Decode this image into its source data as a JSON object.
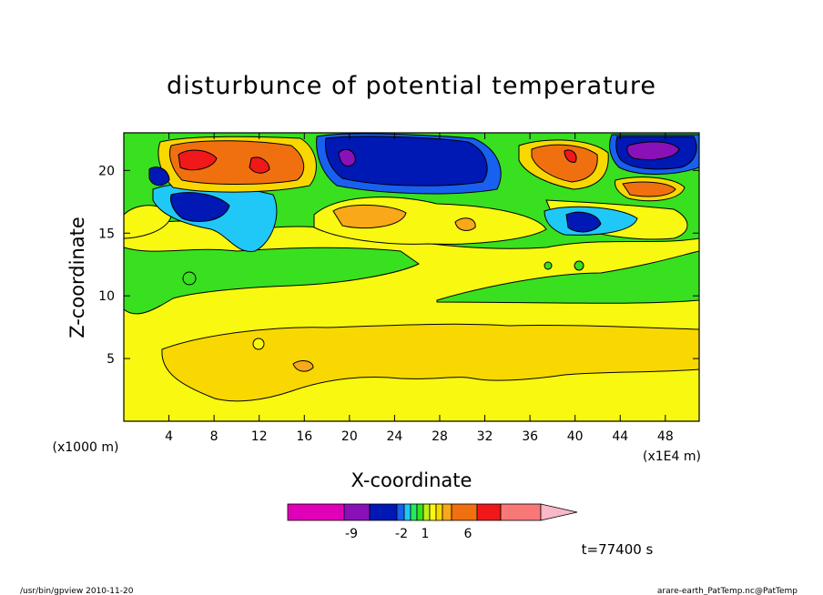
{
  "chart_data": {
    "type": "heatmap",
    "title": "disturbunce of potential temperature",
    "xlabel": "X-coordinate",
    "ylabel": "Z-coordinate",
    "x_unit_label": "(x1E4 m)",
    "y_unit_label": "(x1000 m)",
    "xlim": [
      0,
      51
    ],
    "ylim": [
      0,
      23
    ],
    "x_ticks": [
      4,
      8,
      12,
      16,
      20,
      24,
      28,
      32,
      36,
      40,
      44,
      48
    ],
    "y_ticks": [
      5,
      10,
      15,
      20
    ],
    "colorbar": {
      "colors": [
        "#e000b8",
        "#8a10b8",
        "#0018b4",
        "#1860f0",
        "#20c8f8",
        "#28e860",
        "#38e020",
        "#c0ee18",
        "#f8f810",
        "#f8d800",
        "#f8a818",
        "#f07010",
        "#f01818",
        "#f87878",
        "#f8b8c8"
      ],
      "labels": [
        "-9",
        "-2",
        "1",
        "6"
      ],
      "extend": "max"
    },
    "time_label": "t=77400 s",
    "features": [
      {
        "kind": "warm",
        "x": 12,
        "z": 20.5,
        "value": 6
      },
      {
        "kind": "warm",
        "x": 40,
        "z": 20.5,
        "value": 6
      },
      {
        "kind": "cold",
        "x": 25,
        "z": 20.5,
        "value": -9
      },
      {
        "kind": "cold",
        "x": 47,
        "z": 21.5,
        "value": -9
      },
      {
        "kind": "cold",
        "x": 8,
        "z": 17,
        "value": -5
      },
      {
        "kind": "cold",
        "x": 41,
        "z": 16,
        "value": -5
      },
      {
        "kind": "warm",
        "x": 24,
        "z": 5,
        "value": 2
      }
    ]
  },
  "footer": {
    "left": "/usr/bin/gpview  2010-11-20",
    "right": "arare-earth_PatTemp.nc@PatTemp"
  }
}
